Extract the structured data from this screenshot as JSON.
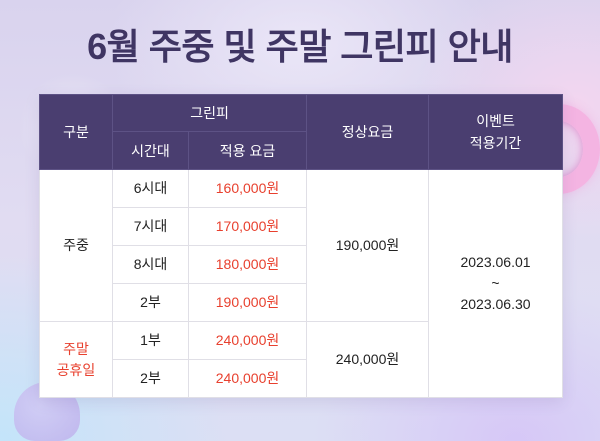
{
  "title": "6월 주중 및 주말 그린피 안내",
  "colors": {
    "title": "#3f3563",
    "header_bg": "#4a3e70",
    "price_red": "#e8402e",
    "weekend_label": "#e8402e",
    "ring": "#f4b4e2"
  },
  "table": {
    "headers": {
      "category": "구분",
      "greenfee": "그린피",
      "timeslot": "시간대",
      "applied_rate": "적용 요금",
      "regular_rate": "정상요금",
      "event_period": [
        "이벤트",
        "적용기간"
      ]
    },
    "groups": [
      {
        "label": [
          "주중"
        ],
        "regular_rate": "190,000원",
        "rows": [
          {
            "time": "6시대",
            "price": "160,000원"
          },
          {
            "time": "7시대",
            "price": "170,000원"
          },
          {
            "time": "8시대",
            "price": "180,000원"
          },
          {
            "time": "2부",
            "price": "190,000원"
          }
        ]
      },
      {
        "label": [
          "주말",
          "공휴일"
        ],
        "regular_rate": "240,000원",
        "rows": [
          {
            "time": "1부",
            "price": "240,000원"
          },
          {
            "time": "2부",
            "price": "240,000원"
          }
        ]
      }
    ],
    "event_period": {
      "start": "2023.06.01",
      "separator": "~",
      "end": "2023.06.30"
    }
  }
}
